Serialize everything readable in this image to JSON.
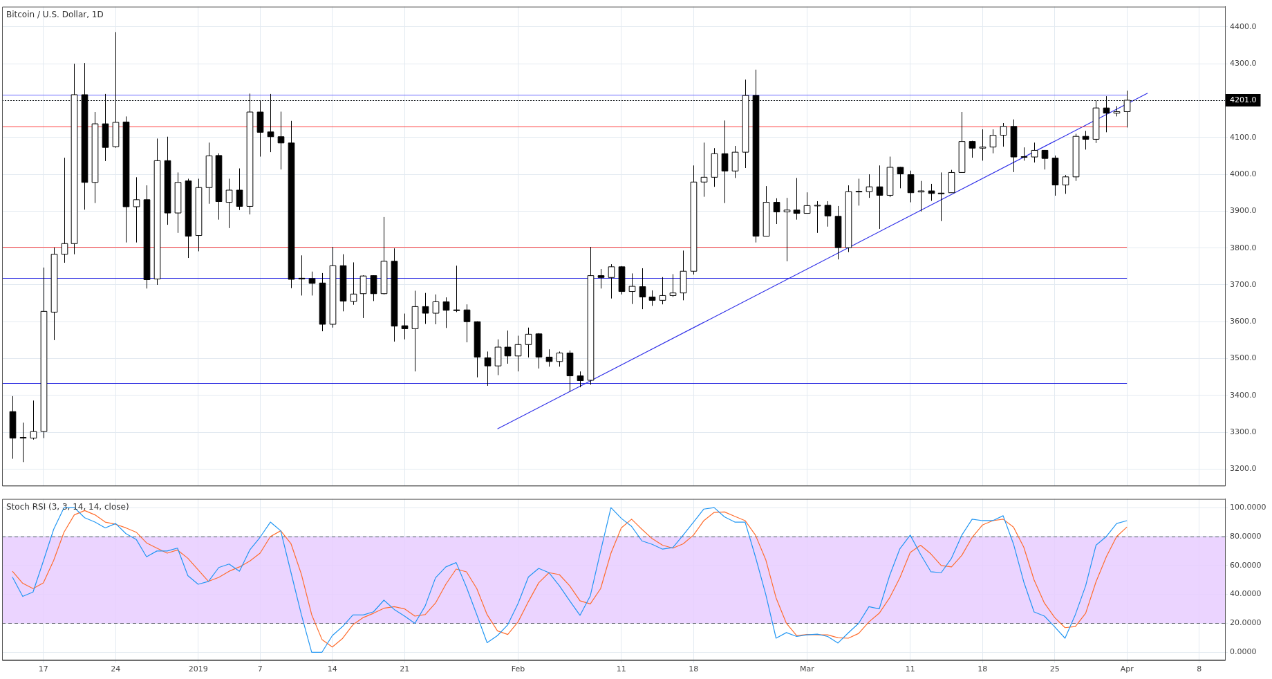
{
  "chart_data": [
    {
      "type": "candlestick",
      "title": "Bitcoin / U.S. Dollar, 1D",
      "x": [
        "2018-12-14",
        "2018-12-15",
        "2018-12-16",
        "2018-12-17",
        "2018-12-18",
        "2018-12-19",
        "2018-12-20",
        "2018-12-21",
        "2018-12-22",
        "2018-12-23",
        "2018-12-24",
        "2018-12-25",
        "2018-12-26",
        "2018-12-27",
        "2018-12-28",
        "2018-12-29",
        "2018-12-30",
        "2018-12-31",
        "2019-01-01",
        "2019-01-02",
        "2019-01-03",
        "2019-01-04",
        "2019-01-05",
        "2019-01-06",
        "2019-01-07",
        "2019-01-08",
        "2019-01-09",
        "2019-01-10",
        "2019-01-11",
        "2019-01-12",
        "2019-01-13",
        "2019-01-14",
        "2019-01-15",
        "2019-01-16",
        "2019-01-17",
        "2019-01-18",
        "2019-01-19",
        "2019-01-20",
        "2019-01-21",
        "2019-01-22",
        "2019-01-23",
        "2019-01-24",
        "2019-01-25",
        "2019-01-26",
        "2019-01-27",
        "2019-01-28",
        "2019-01-29",
        "2019-01-30",
        "2019-01-31",
        "2019-02-01",
        "2019-02-02",
        "2019-02-03",
        "2019-02-04",
        "2019-02-05",
        "2019-02-06",
        "2019-02-07",
        "2019-02-08",
        "2019-02-09",
        "2019-02-10",
        "2019-02-11",
        "2019-02-12",
        "2019-02-13",
        "2019-02-14",
        "2019-02-15",
        "2019-02-16",
        "2019-02-17",
        "2019-02-18",
        "2019-02-19",
        "2019-02-20",
        "2019-02-21",
        "2019-02-22",
        "2019-02-23",
        "2019-02-24",
        "2019-02-25",
        "2019-02-26",
        "2019-02-27",
        "2019-02-28",
        "2019-03-01",
        "2019-03-02",
        "2019-03-03",
        "2019-03-04",
        "2019-03-05",
        "2019-03-06",
        "2019-03-07",
        "2019-03-08",
        "2019-03-09",
        "2019-03-10",
        "2019-03-11",
        "2019-03-12",
        "2019-03-13",
        "2019-03-14",
        "2019-03-15",
        "2019-03-16",
        "2019-03-17",
        "2019-03-18",
        "2019-03-19",
        "2019-03-20",
        "2019-03-21",
        "2019-03-22",
        "2019-03-23",
        "2019-03-24",
        "2019-03-25",
        "2019-03-26",
        "2019-03-27",
        "2019-03-28",
        "2019-03-29",
        "2019-03-30",
        "2019-03-31",
        "2019-04-01"
      ],
      "ohlc": [
        [
          3356,
          3398,
          3228,
          3284
        ],
        [
          3286,
          3326,
          3219,
          3285
        ],
        [
          3284,
          3386,
          3280,
          3302
        ],
        [
          3302,
          3747,
          3284,
          3628
        ],
        [
          3626,
          3801,
          3550,
          3783
        ],
        [
          3783,
          4045,
          3760,
          3812
        ],
        [
          3812,
          4300,
          3783,
          4216
        ],
        [
          4216,
          4302,
          3904,
          3978
        ],
        [
          3978,
          4169,
          3922,
          4137
        ],
        [
          4137,
          4218,
          4036,
          4073
        ],
        [
          4075,
          4386,
          4072,
          4141
        ],
        [
          4142,
          4157,
          3815,
          3912
        ],
        [
          3912,
          3992,
          3815,
          3931
        ],
        [
          3931,
          3970,
          3690,
          3714
        ],
        [
          3716,
          4097,
          3700,
          4037
        ],
        [
          4037,
          4102,
          3863,
          3895
        ],
        [
          3895,
          4005,
          3841,
          3978
        ],
        [
          3982,
          3988,
          3773,
          3832
        ],
        [
          3834,
          3988,
          3791,
          3964
        ],
        [
          3964,
          4086,
          3920,
          4050
        ],
        [
          4051,
          4057,
          3877,
          3926
        ],
        [
          3924,
          3988,
          3854,
          3957
        ],
        [
          3957,
          4016,
          3903,
          3913
        ],
        [
          3913,
          4219,
          3891,
          4169
        ],
        [
          4169,
          4199,
          4048,
          4114
        ],
        [
          4115,
          4218,
          4060,
          4102
        ],
        [
          4102,
          4170,
          4013,
          4085
        ],
        [
          4085,
          4145,
          3691,
          3715
        ],
        [
          3718,
          3780,
          3671,
          3716
        ],
        [
          3717,
          3736,
          3671,
          3704
        ],
        [
          3705,
          3732,
          3574,
          3593
        ],
        [
          3593,
          3803,
          3584,
          3752
        ],
        [
          3752,
          3783,
          3628,
          3656
        ],
        [
          3655,
          3761,
          3646,
          3675
        ],
        [
          3676,
          3726,
          3610,
          3724
        ],
        [
          3725,
          3726,
          3656,
          3676
        ],
        [
          3676,
          3884,
          3674,
          3764
        ],
        [
          3764,
          3799,
          3546,
          3588
        ],
        [
          3589,
          3622,
          3552,
          3581
        ],
        [
          3581,
          3684,
          3465,
          3641
        ],
        [
          3641,
          3678,
          3594,
          3623
        ],
        [
          3623,
          3674,
          3593,
          3654
        ],
        [
          3654,
          3666,
          3583,
          3631
        ],
        [
          3632,
          3752,
          3626,
          3631
        ],
        [
          3632,
          3647,
          3544,
          3600
        ],
        [
          3600,
          3601,
          3449,
          3504
        ],
        [
          3502,
          3519,
          3426,
          3480
        ],
        [
          3480,
          3552,
          3455,
          3531
        ],
        [
          3531,
          3576,
          3486,
          3507
        ],
        [
          3507,
          3562,
          3465,
          3538
        ],
        [
          3538,
          3584,
          3503,
          3566
        ],
        [
          3567,
          3569,
          3473,
          3504
        ],
        [
          3504,
          3525,
          3478,
          3492
        ],
        [
          3492,
          3519,
          3478,
          3515
        ],
        [
          3515,
          3522,
          3410,
          3453
        ],
        [
          3453,
          3465,
          3422,
          3440
        ],
        [
          3441,
          3803,
          3429,
          3725
        ],
        [
          3725,
          3743,
          3690,
          3720
        ],
        [
          3720,
          3756,
          3663,
          3749
        ],
        [
          3749,
          3751,
          3674,
          3682
        ],
        [
          3682,
          3731,
          3648,
          3696
        ],
        [
          3695,
          3745,
          3634,
          3667
        ],
        [
          3667,
          3685,
          3643,
          3658
        ],
        [
          3658,
          3721,
          3647,
          3671
        ],
        [
          3671,
          3729,
          3667,
          3678
        ],
        [
          3678,
          3793,
          3658,
          3737
        ],
        [
          3737,
          4024,
          3728,
          3979
        ],
        [
          3979,
          4086,
          3939,
          3992
        ],
        [
          3992,
          4071,
          3966,
          4056
        ],
        [
          4056,
          4146,
          3922,
          4009
        ],
        [
          4009,
          4077,
          3990,
          4060
        ],
        [
          4060,
          4257,
          4017,
          4214
        ],
        [
          4214,
          4284,
          3815,
          3832
        ],
        [
          3832,
          3968,
          3832,
          3924
        ],
        [
          3924,
          3935,
          3865,
          3898
        ],
        [
          3898,
          3936,
          3764,
          3903
        ],
        [
          3903,
          3990,
          3877,
          3894
        ],
        [
          3894,
          3951,
          3894,
          3915
        ],
        [
          3915,
          3927,
          3841,
          3916
        ],
        [
          3916,
          3927,
          3858,
          3887
        ],
        [
          3886,
          3914,
          3769,
          3801
        ],
        [
          3801,
          3970,
          3789,
          3953
        ],
        [
          3953,
          3988,
          3915,
          3954
        ],
        [
          3953,
          4000,
          3936,
          3966
        ],
        [
          3966,
          4024,
          3852,
          3943
        ],
        [
          3943,
          4048,
          3938,
          4019
        ],
        [
          4019,
          4020,
          3962,
          4001
        ],
        [
          3999,
          4010,
          3924,
          3950
        ],
        [
          3952,
          3982,
          3899,
          3955
        ],
        [
          3955,
          3974,
          3928,
          3948
        ],
        [
          3949,
          4005,
          3873,
          3948
        ],
        [
          3950,
          4012,
          3950,
          4005
        ],
        [
          4005,
          4169,
          4005,
          4089
        ],
        [
          4089,
          4091,
          4045,
          4071
        ],
        [
          4071,
          4122,
          4037,
          4074
        ],
        [
          4074,
          4122,
          4057,
          4106
        ],
        [
          4106,
          4139,
          4075,
          4130
        ],
        [
          4130,
          4149,
          4006,
          4047
        ],
        [
          4047,
          4073,
          4037,
          4048
        ],
        [
          4047,
          4086,
          4032,
          4065
        ],
        [
          4065,
          4066,
          4013,
          4043
        ],
        [
          4044,
          4051,
          3942,
          3971
        ],
        [
          3971,
          3998,
          3947,
          3993
        ],
        [
          3993,
          4110,
          3982,
          4103
        ],
        [
          4103,
          4118,
          4067,
          4095
        ],
        [
          4095,
          4200,
          4085,
          4180
        ],
        [
          4180,
          4212,
          4114,
          4166
        ],
        [
          4166,
          4185,
          4157,
          4170
        ],
        [
          4170,
          4227,
          4127,
          4201
        ]
      ],
      "series": [
        {
          "type": "line",
          "color": "#2f2fe8",
          "x": [
            "2019-01-30",
            "2019-04-03"
          ],
          "values": [
            3309,
            4220
          ]
        }
      ],
      "ref_lines": [
        {
          "axis": "y",
          "value": 4216,
          "color": "#6464ff",
          "line_style": "solid"
        },
        {
          "axis": "y",
          "value": 4201,
          "label": "4201.0",
          "color": "#000000",
          "line_style": "dotted"
        },
        {
          "axis": "y",
          "value": 4130,
          "color": "#ff3b3b",
          "line_style": "solid"
        },
        {
          "axis": "y",
          "value": 3803,
          "color": "#ff3b3b",
          "line_style": "solid"
        },
        {
          "axis": "y",
          "value": 3719,
          "color": "#2424e0",
          "line_style": "solid"
        },
        {
          "axis": "y",
          "value": 3433,
          "color": "#2424e0",
          "line_style": "solid"
        }
      ],
      "xlim": [
        "2018-12-13",
        "2019-04-10T12:00"
      ],
      "xticks": [
        {
          "value": "2018-12-17",
          "label": null
        },
        {
          "value": "2018-12-24",
          "label": null
        },
        {
          "value": "2019-01-01",
          "label": null
        },
        {
          "value": "2019-01-07",
          "label": null
        },
        {
          "value": "2019-01-14",
          "label": null
        },
        {
          "value": "2019-01-21",
          "label": null
        },
        {
          "value": "2019-02-01",
          "label": null
        },
        {
          "value": "2019-02-11",
          "label": null
        },
        {
          "value": "2019-02-18",
          "label": null
        },
        {
          "value": "2019-03-01",
          "label": null
        },
        {
          "value": "2019-03-11",
          "label": null
        },
        {
          "value": "2019-03-18",
          "label": null
        },
        {
          "value": "2019-03-25",
          "label": null
        },
        {
          "value": "2019-04-01",
          "label": null
        },
        {
          "value": "2019-04-08",
          "label": null
        }
      ],
      "ylim": [
        3155,
        4455
      ],
      "yticks": [
        {
          "value": 3200,
          "label": "3200.0"
        },
        {
          "value": 3300,
          "label": "3300.0"
        },
        {
          "value": 3400,
          "label": "3400.0"
        },
        {
          "value": 3500,
          "label": "3500.0"
        },
        {
          "value": 3600,
          "label": "3600.0"
        },
        {
          "value": 3700,
          "label": "3700.0"
        },
        {
          "value": 3800,
          "label": "3800.0"
        },
        {
          "value": 3900,
          "label": "3900.0"
        },
        {
          "value": 4000,
          "label": "4000.0"
        },
        {
          "value": 4100,
          "label": "4100.0"
        },
        {
          "value": 4200,
          "label": null
        },
        {
          "value": 4300,
          "label": "4300.0"
        },
        {
          "value": 4400,
          "label": "4400.0"
        }
      ],
      "tick_labels": "y",
      "grid": true
    },
    {
      "type": "line",
      "title": "Stoch RSI (3, 3, 14, 14, close)",
      "x": [
        "2018-12-14",
        "2018-12-15",
        "2018-12-16",
        "2018-12-17",
        "2018-12-18",
        "2018-12-19",
        "2018-12-20",
        "2018-12-21",
        "2018-12-22",
        "2018-12-23",
        "2018-12-24",
        "2018-12-25",
        "2018-12-26",
        "2018-12-27",
        "2018-12-28",
        "2018-12-29",
        "2018-12-30",
        "2018-12-31",
        "2019-01-01",
        "2019-01-02",
        "2019-01-03",
        "2019-01-04",
        "2019-01-05",
        "2019-01-06",
        "2019-01-07",
        "2019-01-08",
        "2019-01-09",
        "2019-01-10",
        "2019-01-11",
        "2019-01-12",
        "2019-01-13",
        "2019-01-14",
        "2019-01-15",
        "2019-01-16",
        "2019-01-17",
        "2019-01-18",
        "2019-01-19",
        "2019-01-20",
        "2019-01-21",
        "2019-01-22",
        "2019-01-23",
        "2019-01-24",
        "2019-01-25",
        "2019-01-26",
        "2019-01-27",
        "2019-01-28",
        "2019-01-29",
        "2019-01-30",
        "2019-01-31",
        "2019-02-01",
        "2019-02-02",
        "2019-02-03",
        "2019-02-04",
        "2019-02-05",
        "2019-02-06",
        "2019-02-07",
        "2019-02-08",
        "2019-02-09",
        "2019-02-10",
        "2019-02-11",
        "2019-02-12",
        "2019-02-13",
        "2019-02-14",
        "2019-02-15",
        "2019-02-16",
        "2019-02-17",
        "2019-02-18",
        "2019-02-19",
        "2019-02-20",
        "2019-02-21",
        "2019-02-22",
        "2019-02-23",
        "2019-02-24",
        "2019-02-25",
        "2019-02-26",
        "2019-02-27",
        "2019-02-28",
        "2019-03-01",
        "2019-03-02",
        "2019-03-03",
        "2019-03-04",
        "2019-03-05",
        "2019-03-06",
        "2019-03-07",
        "2019-03-08",
        "2019-03-09",
        "2019-03-10",
        "2019-03-11",
        "2019-03-12",
        "2019-03-13",
        "2019-03-14",
        "2019-03-15",
        "2019-03-16",
        "2019-03-17",
        "2019-03-18",
        "2019-03-19",
        "2019-03-20",
        "2019-03-21",
        "2019-03-22",
        "2019-03-23",
        "2019-03-24",
        "2019-03-25",
        "2019-03-26",
        "2019-03-27",
        "2019-03-28",
        "2019-03-29",
        "2019-03-30",
        "2019-03-31",
        "2019-04-01"
      ],
      "series": [
        {
          "color": "#2196f3",
          "values": [
            52,
            38.6,
            41.6,
            63,
            85,
            100,
            100,
            93,
            90,
            86,
            89,
            82,
            78,
            66,
            70,
            70,
            72,
            53,
            47,
            49,
            58.6,
            61,
            56,
            70.7,
            79.5,
            90,
            84,
            55,
            26,
            0,
            0,
            11.5,
            17.8,
            25.8,
            25.8,
            28,
            36,
            29.6,
            25,
            20,
            32,
            51.5,
            59,
            62,
            45,
            26,
            6.6,
            11.5,
            19,
            33.7,
            52,
            58,
            55,
            46,
            35.6,
            25.5,
            39,
            70,
            100,
            92.6,
            87,
            77,
            74.6,
            71.3,
            72.4,
            81,
            90,
            99,
            100,
            93.6,
            90,
            90,
            66,
            40,
            9.7,
            13.6,
            10.9,
            12,
            12.5,
            10.9,
            6.4,
            13.4,
            20,
            31.5,
            30,
            53,
            71.6,
            81,
            67.7,
            55.7,
            55,
            65,
            81,
            92,
            91,
            91,
            94.4,
            75,
            48.7,
            27.9,
            25,
            17.5,
            9.7,
            26,
            46,
            74,
            80,
            89,
            91
          ]
        },
        {
          "color": "#ff6d2e",
          "values": [
            56,
            47.7,
            44,
            48,
            63.5,
            83,
            95,
            98,
            95,
            90,
            88.5,
            86,
            83,
            75.6,
            72,
            68.5,
            70.7,
            65,
            57,
            49,
            51.8,
            56,
            59,
            63,
            68.5,
            80,
            84,
            75,
            54,
            26,
            8.8,
            3.6,
            9.6,
            19,
            24,
            27,
            30.4,
            31.5,
            30,
            25,
            26,
            34,
            47,
            57.5,
            55.6,
            44,
            26,
            14.8,
            12.3,
            21,
            35,
            48,
            55,
            53.7,
            46,
            35.6,
            33.4,
            44,
            68.5,
            86,
            92,
            85,
            78.5,
            74,
            72,
            75,
            81,
            91,
            96.7,
            97,
            94,
            91,
            81,
            64,
            37.6,
            20,
            11.4,
            12.3,
            12,
            12,
            10,
            9.7,
            13,
            21,
            27,
            37.6,
            51.5,
            69,
            74,
            68,
            60,
            59,
            67,
            79.4,
            88,
            91,
            92,
            86.6,
            72.7,
            50,
            34,
            24,
            17,
            17.8,
            27,
            48.7,
            66,
            80,
            86.6
          ]
        }
      ],
      "bands": [
        {
          "axis": "y",
          "from": 20,
          "to": 80,
          "color": "#e8ccff"
        }
      ],
      "xlim": [
        "2018-12-13",
        "2019-04-10T12:00"
      ],
      "xticks": [
        {
          "value": "2018-12-17",
          "label": "17"
        },
        {
          "value": "2018-12-24",
          "label": "24"
        },
        {
          "value": "2019-01-01",
          "label": "2019"
        },
        {
          "value": "2019-01-07",
          "label": "7"
        },
        {
          "value": "2019-01-14",
          "label": "14"
        },
        {
          "value": "2019-01-21",
          "label": "21"
        },
        {
          "value": "2019-02-01",
          "label": "Feb"
        },
        {
          "value": "2019-02-11",
          "label": "11"
        },
        {
          "value": "2019-02-18",
          "label": "18"
        },
        {
          "value": "2019-03-01",
          "label": "Mar"
        },
        {
          "value": "2019-03-11",
          "label": "11"
        },
        {
          "value": "2019-03-18",
          "label": "18"
        },
        {
          "value": "2019-03-25",
          "label": "25"
        },
        {
          "value": "2019-04-01",
          "label": "Apr"
        },
        {
          "value": "2019-04-08",
          "label": "8"
        }
      ],
      "ylim": [
        -5.5,
        106
      ],
      "yticks": [
        {
          "value": 0,
          "label": "0.0000"
        },
        {
          "value": 20,
          "label": "20.0000"
        },
        {
          "value": 40,
          "label": "40.0000"
        },
        {
          "value": 60,
          "label": "60.0000"
        },
        {
          "value": 80,
          "label": "80.0000"
        },
        {
          "value": 100,
          "label": "100.0000"
        }
      ],
      "grid": true
    }
  ]
}
